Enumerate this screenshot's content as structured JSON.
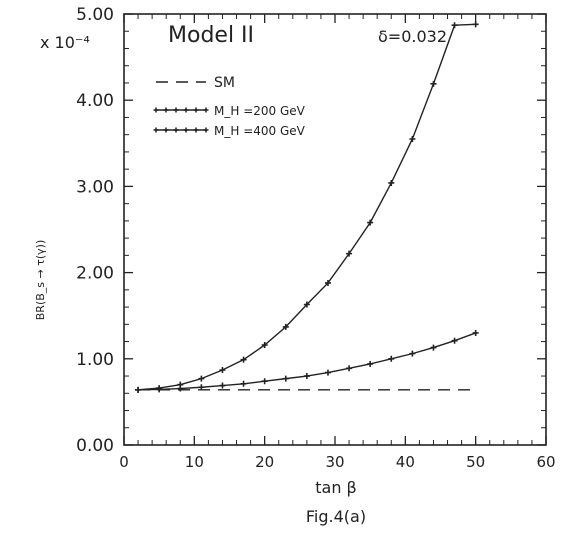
{
  "chart_data": {
    "type": "line",
    "annotation_model": "Model II",
    "annotation_delta": "δ=0.032",
    "scale_label": "x 10⁻⁴",
    "xlabel": "tan β",
    "ylabel": "BR(B_s → τ(γ))",
    "caption": "Fig.4(a)",
    "xlim": [
      0,
      60
    ],
    "ylim": [
      0,
      5
    ],
    "x_ticks": [
      "0",
      "10",
      "20",
      "30",
      "40",
      "50",
      "60"
    ],
    "y_ticks": [
      "0.00",
      "1.00",
      "2.00",
      "3.00",
      "4.00",
      "5.00"
    ],
    "grid": false,
    "legend_position": "top-left",
    "series": [
      {
        "name": "SM",
        "style": "dashed",
        "x": [
          2,
          50
        ],
        "y": [
          0.64,
          0.64
        ]
      },
      {
        "name": "M_H =200 GeV",
        "style": "solid-markers",
        "x": [
          2,
          5,
          8,
          11,
          14,
          17,
          20,
          23,
          26,
          29,
          32,
          35,
          38,
          41,
          44,
          47,
          50
        ],
        "y": [
          0.64,
          0.66,
          0.7,
          0.77,
          0.87,
          0.99,
          1.16,
          1.37,
          1.63,
          1.88,
          2.22,
          2.58,
          3.04,
          3.55,
          4.19,
          4.87,
          4.88
        ]
      },
      {
        "name": "M_H =400 GeV",
        "style": "solid-markers",
        "x": [
          2,
          5,
          8,
          11,
          14,
          17,
          20,
          23,
          26,
          29,
          32,
          35,
          38,
          41,
          44,
          47,
          50
        ],
        "y": [
          0.64,
          0.645,
          0.655,
          0.67,
          0.69,
          0.71,
          0.74,
          0.77,
          0.8,
          0.84,
          0.89,
          0.94,
          1.0,
          1.06,
          1.13,
          1.21,
          1.3
        ]
      }
    ]
  }
}
